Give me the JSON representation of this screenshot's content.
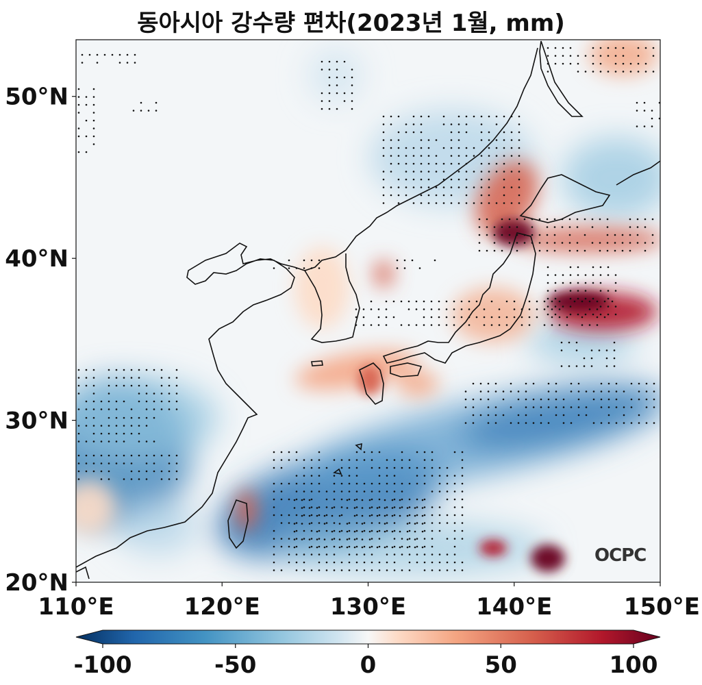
{
  "title": "동아시아 강수량 편차(2023년 1월, mm)",
  "logo": "OCPC",
  "map": {
    "lon_range": [
      110,
      150
    ],
    "lat_range": [
      20,
      53.5
    ],
    "x_ticks": [
      {
        "value": 110,
        "label": "110°E"
      },
      {
        "value": 120,
        "label": "120°E"
      },
      {
        "value": 130,
        "label": "130°E"
      },
      {
        "value": 140,
        "label": "140°E"
      },
      {
        "value": 150,
        "label": "150°E"
      }
    ],
    "y_ticks": [
      {
        "value": 20,
        "label": "20°N"
      },
      {
        "value": 30,
        "label": "30°N"
      },
      {
        "value": 40,
        "label": "40°N"
      },
      {
        "value": 50,
        "label": "50°N"
      }
    ],
    "colorbar": {
      "min": -100,
      "max": 100,
      "ticks": [
        {
          "value": -100,
          "label": "-100"
        },
        {
          "value": -50,
          "label": "-50"
        },
        {
          "value": 0,
          "label": "0"
        },
        {
          "value": 50,
          "label": "50"
        },
        {
          "value": 100,
          "label": "100"
        }
      ],
      "colormap": "RdBu_r",
      "colors": [
        "#053061",
        "#2166ac",
        "#4393c3",
        "#92c5de",
        "#d1e5f0",
        "#f7f7f7",
        "#fddbc7",
        "#f4a582",
        "#d6604d",
        "#b2182b",
        "#67001f"
      ]
    },
    "background_color": "#f3f6f8"
  }
}
